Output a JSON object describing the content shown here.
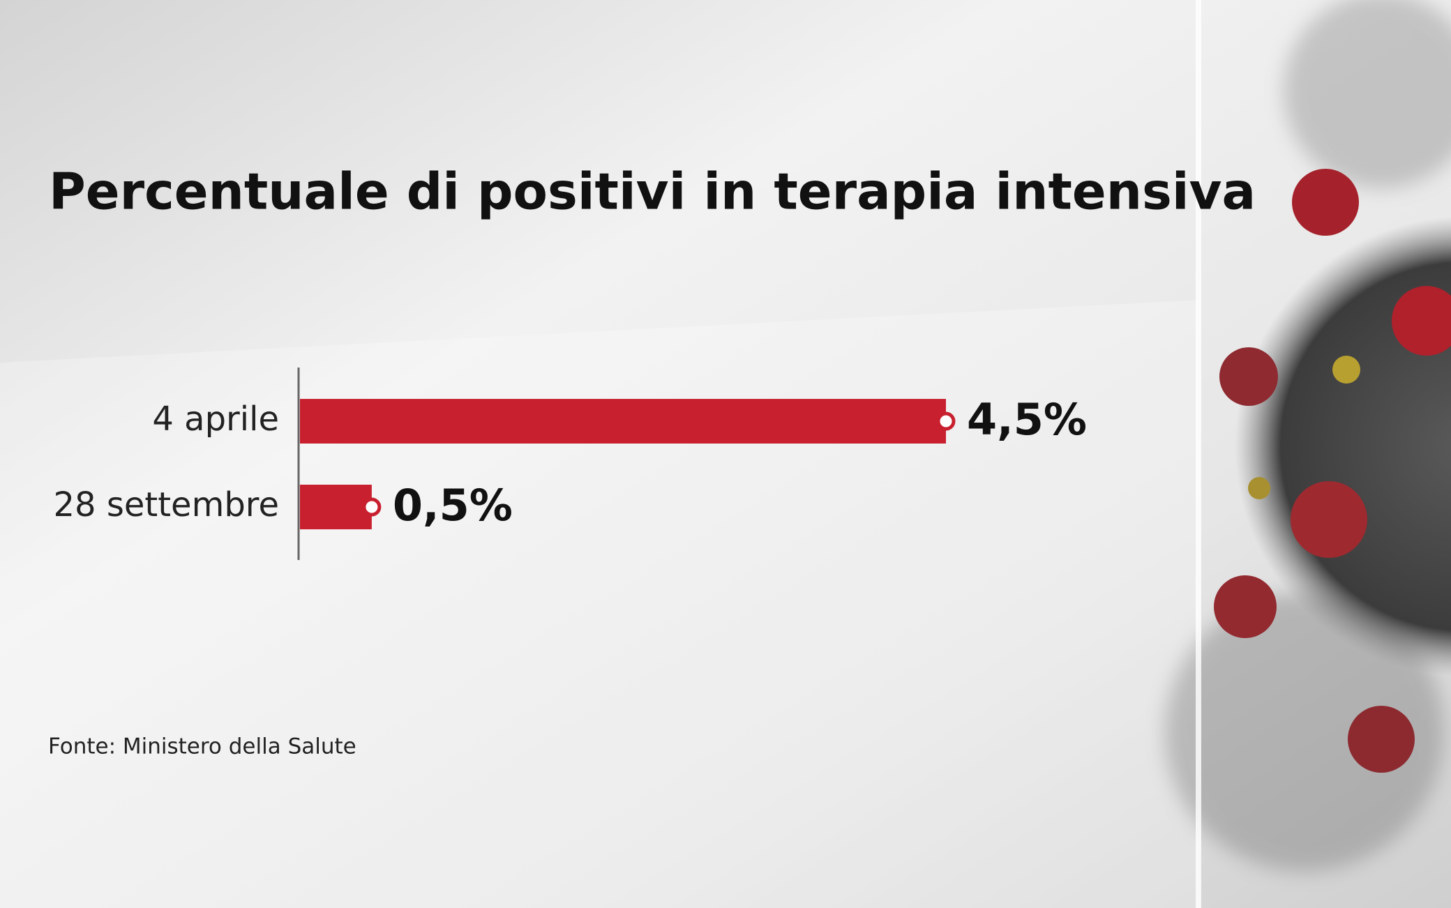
{
  "chart_data": {
    "type": "bar",
    "orientation": "horizontal",
    "title": "Percentuale di positivi in terapia intensiva",
    "categories": [
      "4 aprile",
      "28 settembre"
    ],
    "values": [
      4.5,
      0.5
    ],
    "value_labels": [
      "4,5%",
      "0,5%"
    ],
    "color": "#c8202f",
    "source": "Fonte: Ministero della Salute"
  }
}
